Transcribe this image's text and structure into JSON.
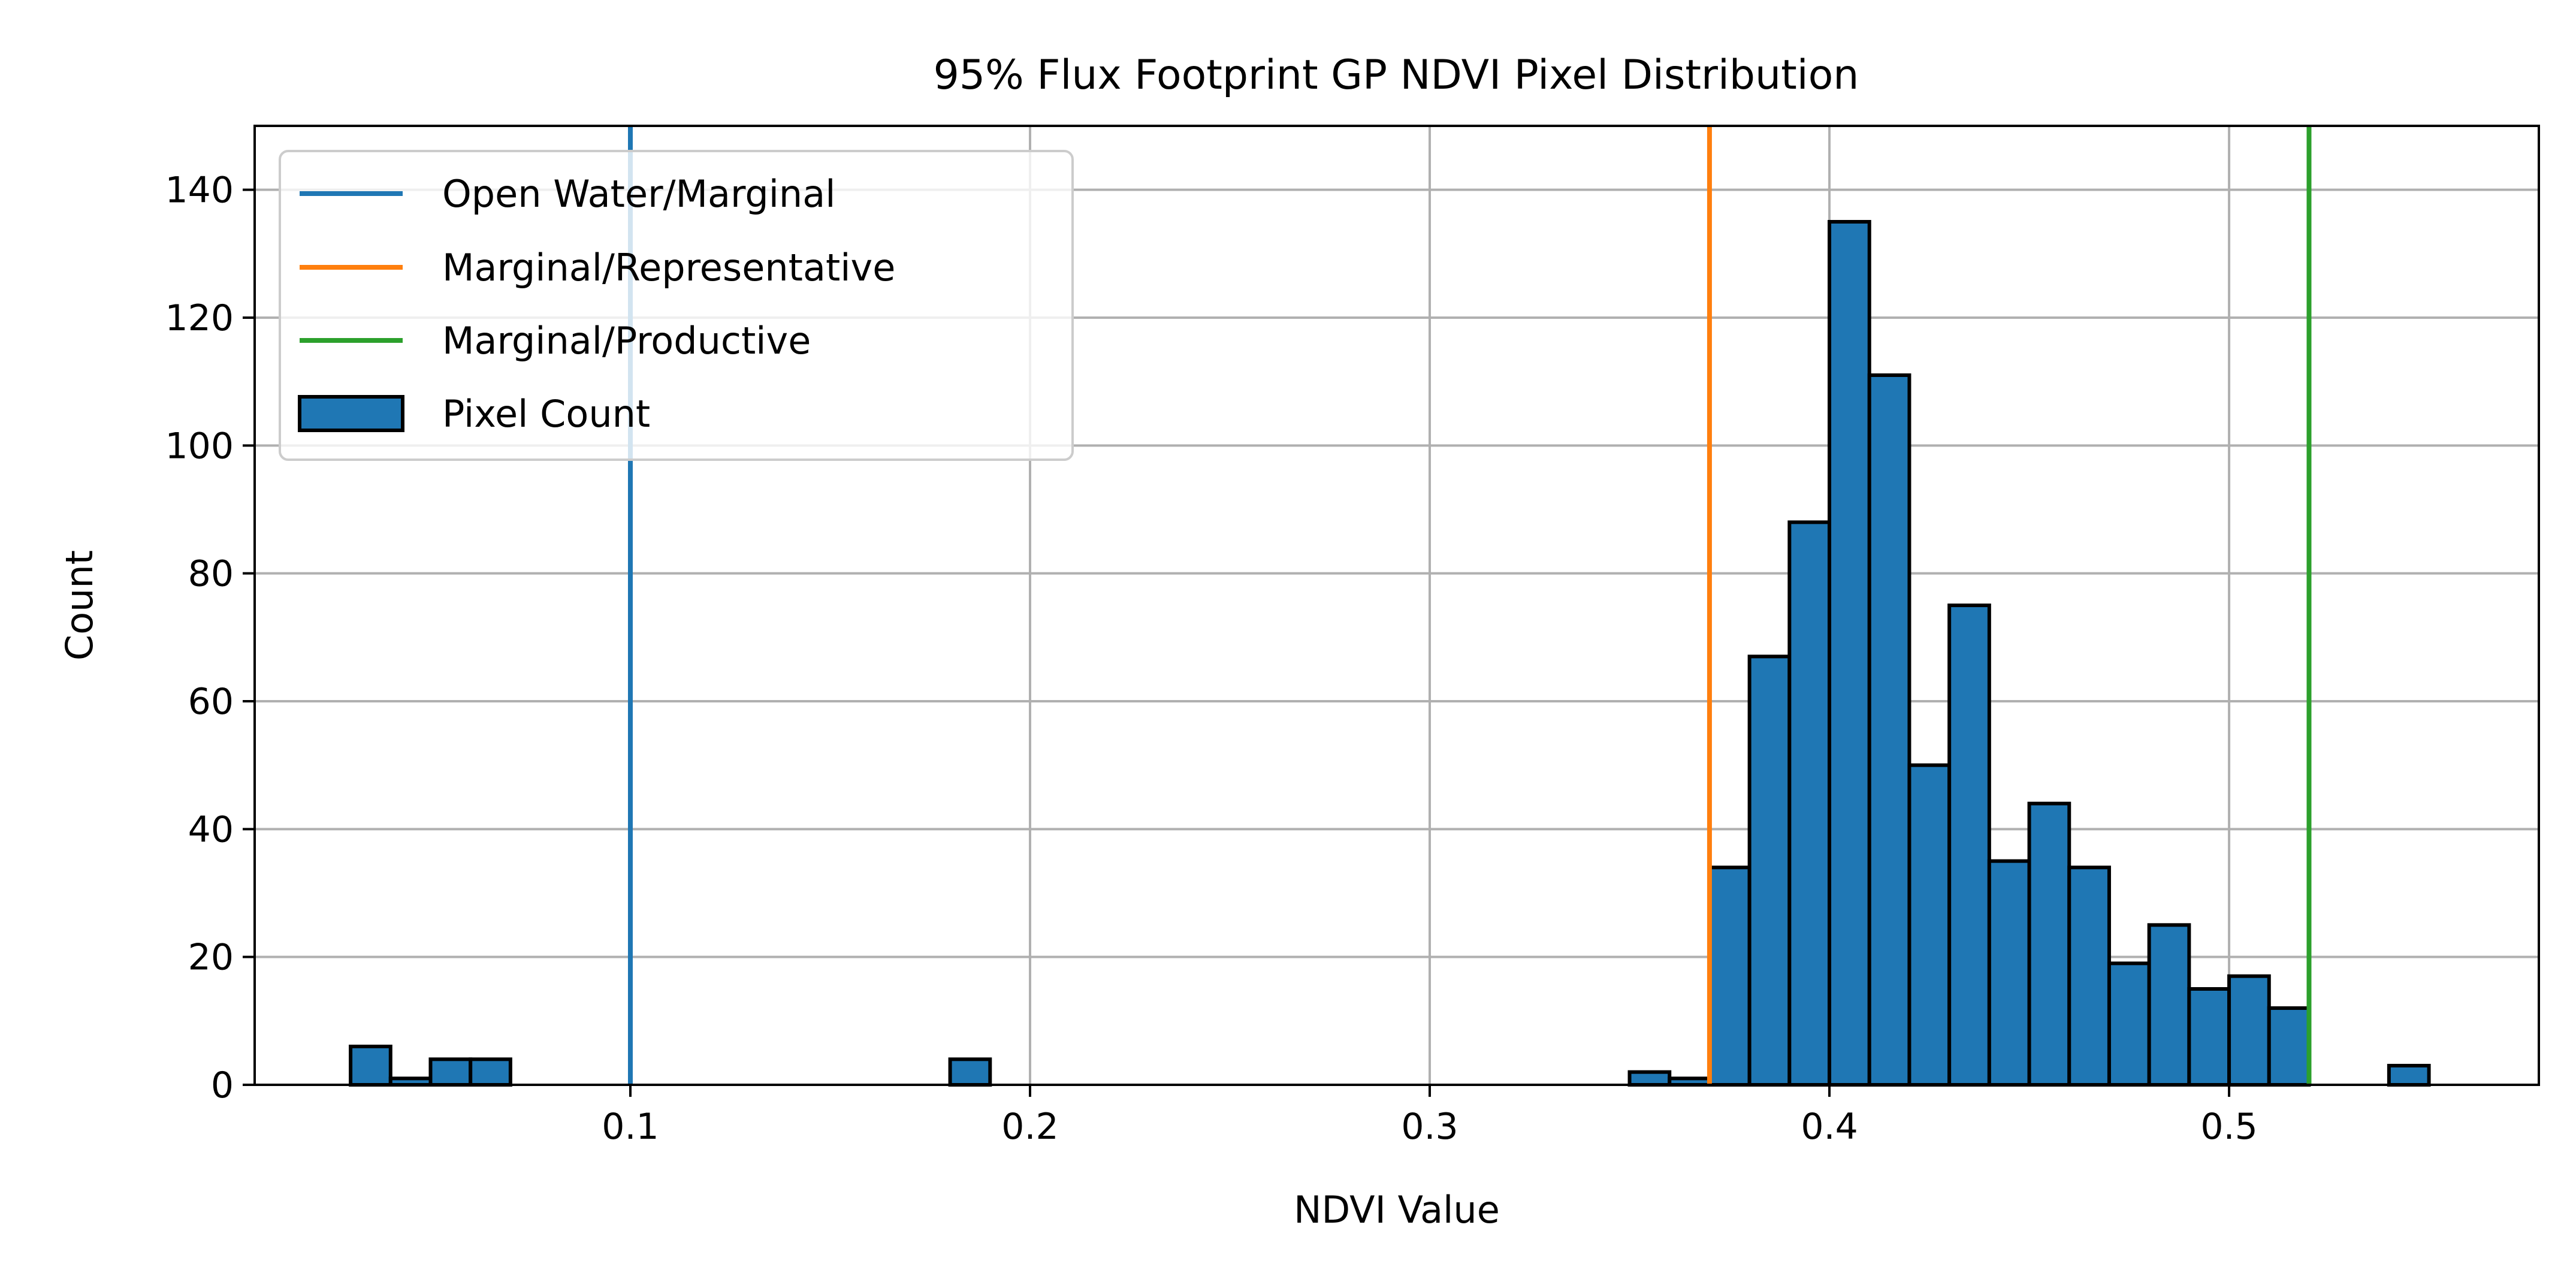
{
  "chart_data": {
    "type": "bar",
    "title": "95% Flux Footprint GP NDVI Pixel Distribution",
    "xlabel": "NDVI Value",
    "ylabel": "Count",
    "xlim": [
      0.006,
      0.5775
    ],
    "ylim": [
      0,
      150
    ],
    "xticks": [
      0.1,
      0.2,
      0.3,
      0.4,
      0.5
    ],
    "xtick_labels": [
      "0.1",
      "0.2",
      "0.3",
      "0.4",
      "0.5"
    ],
    "yticks": [
      0,
      20,
      40,
      60,
      80,
      100,
      120,
      140
    ],
    "ytick_labels": [
      "0",
      "20",
      "40",
      "60",
      "80",
      "100",
      "120",
      "140"
    ],
    "grid": true,
    "legend_position": "top-left",
    "bin_start": 0.03,
    "bin_width": 0.01,
    "series": [
      {
        "name": "Pixel Count",
        "kind": "histogram",
        "color": "#1f77b4",
        "edge_color": "#000000",
        "values": [
          6,
          1,
          4,
          4,
          0,
          0,
          0,
          0,
          0,
          0,
          0,
          0,
          0,
          0,
          0,
          4,
          0,
          0,
          0,
          0,
          0,
          0,
          0,
          0,
          0,
          0,
          0,
          0,
          0,
          0,
          0,
          0,
          2,
          1,
          34,
          67,
          88,
          135,
          111,
          50,
          75,
          35,
          44,
          34,
          19,
          25,
          15,
          17,
          12,
          0,
          0,
          3
        ]
      }
    ],
    "vlines": [
      {
        "name": "Open Water/Marginal",
        "x": 0.1,
        "color": "#1f77b4"
      },
      {
        "name": "Marginal/Representative",
        "x": 0.37,
        "color": "#ff7f0e"
      },
      {
        "name": "Marginal/Productive",
        "x": 0.52,
        "color": "#2ca02c"
      }
    ]
  }
}
